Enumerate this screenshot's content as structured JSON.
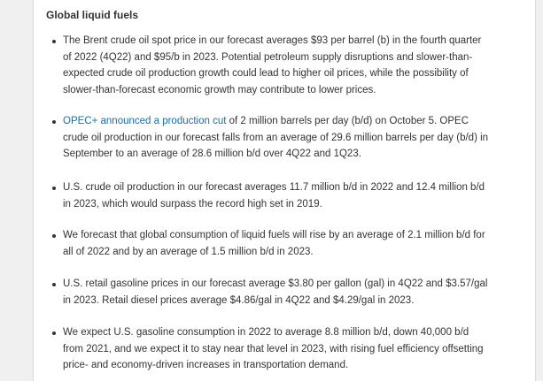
{
  "section": {
    "heading": "Global liquid fuels"
  },
  "bullets": [
    {
      "lines": [
        "The Brent crude oil spot price in our forecast averages $93 per barrel (b) in the fourth quarter",
        "of 2022 (4Q22) and $95/b in 2023. Potential petroleum supply disruptions and slower-than-",
        "expected crude oil production growth could lead to higher oil prices, while the possibility of",
        "slower-than-forecast economic growth may contribute to lower prices."
      ]
    },
    {
      "link_text": "OPEC+ announced a production cut",
      "line1_rest": " of 2 million barrels per day (b/d) on October 5. OPEC",
      "lines": [
        "crude oil production in our forecast falls from an average of 29.6 million barrels per day (b/d) in",
        "September to an average of 28.6 million b/d over 4Q22 and 1Q23."
      ]
    },
    {
      "lines": [
        "U.S. crude oil production in our forecast averages 11.7 million b/d in 2022 and 12.4 million b/d",
        "in 2023, which would surpass the record high set in 2019."
      ]
    },
    {
      "lines": [
        "We forecast that global consumption of liquid fuels will rise by an average of 2.1 million b/d for",
        "all of 2022 and by an average of 1.5 million b/d in 2023."
      ]
    },
    {
      "lines": [
        "U.S. retail gasoline prices in our forecast average $3.80 per gallon (gal) in 4Q22 and $3.57/gal",
        "in 2023. Retail diesel prices average $4.86/gal in 4Q22 and $4.29/gal in 2023."
      ]
    },
    {
      "lines": [
        "We expect U.S. gasoline consumption in 2022 to average 8.8 million b/d, down 40,000 b/d",
        "from 2021, and we expect it to stay near that level in 2023, with rising fuel efficiency offsetting",
        "price- and economy-driven increases in transportation demand."
      ]
    }
  ],
  "colors": {
    "text": "#333333",
    "link": "#1a6fa8",
    "page_background": "#f0f0f0",
    "panel_background": "#ffffff"
  }
}
